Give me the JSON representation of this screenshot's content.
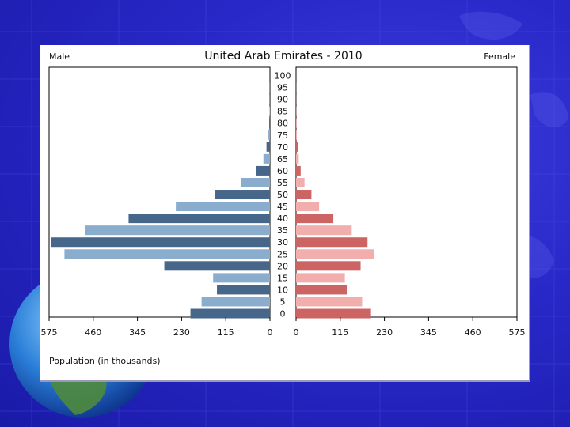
{
  "colors": {
    "male_dark": "#46668a",
    "male_light": "#8aaccd",
    "female_dark": "#cd6464",
    "female_light": "#f2adad"
  },
  "chart_data": {
    "type": "bar",
    "subtype": "population-pyramid",
    "title": "United Arab Emirates - 2010",
    "left_label": "Male",
    "right_label": "Female",
    "xlabel": "Population (in thousands)",
    "xlim": [
      0,
      575
    ],
    "male_ticks": [
      "575",
      "460",
      "345",
      "230",
      "115",
      "0"
    ],
    "female_ticks": [
      "0",
      "115",
      "230",
      "345",
      "460",
      "575"
    ],
    "age_groups": [
      "0",
      "5",
      "10",
      "15",
      "20",
      "25",
      "30",
      "35",
      "40",
      "45",
      "50",
      "55",
      "60",
      "65",
      "70",
      "75",
      "80",
      "85",
      "90",
      "95",
      "100"
    ],
    "series": [
      {
        "name": "Male",
        "values": [
          207,
          178,
          138,
          148,
          275,
          535,
          570,
          482,
          368,
          245,
          143,
          76,
          36,
          17,
          9,
          4,
          2,
          1,
          0.5,
          0.3,
          0.1
        ]
      },
      {
        "name": "Female",
        "values": [
          195,
          172,
          132,
          127,
          168,
          204,
          186,
          145,
          97,
          60,
          40,
          22,
          12,
          7,
          5,
          2,
          1,
          0.5,
          0.3,
          0.2,
          0.1
        ]
      }
    ]
  }
}
